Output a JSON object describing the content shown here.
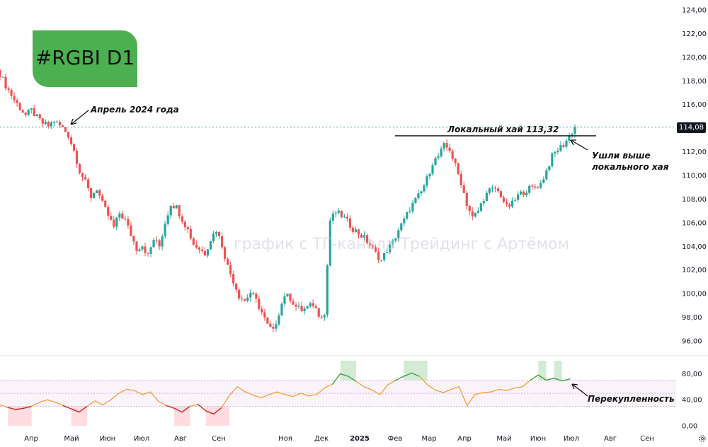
{
  "ticker": "#RGBI D1",
  "watermark": "график с ТГ-канала Трейдинг с Артёмом",
  "last_price_label": "114,08",
  "annotations": {
    "april": "Апрель 2024 года",
    "local_high": "Локальный хай 113,32",
    "above_high_line1": "Ушли выше",
    "above_high_line2": "локального хая",
    "overbought": "Перекупленность"
  },
  "settings_icon": "gear-icon",
  "chart_data": [
    {
      "type": "candlestick",
      "title": "#RGBI D1",
      "x_tick_labels": [
        "Апр",
        "Май",
        "Июн",
        "Июл",
        "Авг",
        "Сен",
        "Ноя",
        "Дек",
        "2025",
        "Фев",
        "Мар",
        "Апр",
        "Май",
        "Июн",
        "Июл",
        "Авг",
        "Сен"
      ],
      "y_tick_labels": [
        "96,00",
        "98,00",
        "100,00",
        "102,00",
        "104,00",
        "106,00",
        "108,00",
        "110,00",
        "112,00",
        "114,00",
        "116,00",
        "118,00",
        "120,00",
        "122,00",
        "124,00"
      ],
      "ylim": [
        95,
        124.5
      ],
      "grid": false,
      "last_price": 114.08,
      "local_high": 113.32,
      "colors": {
        "up": "#26a69a",
        "down": "#ef5350",
        "line": "#131722"
      },
      "close_path": [
        [
          0,
          118.6
        ],
        [
          2,
          117.6
        ],
        [
          5,
          116.4
        ],
        [
          7,
          115.7
        ],
        [
          9,
          115.1
        ],
        [
          11,
          115.5
        ],
        [
          13,
          114.9
        ],
        [
          15,
          114.4
        ],
        [
          17,
          114.2
        ],
        [
          19,
          114.6
        ],
        [
          22,
          114.0
        ],
        [
          24,
          113.4
        ],
        [
          26,
          112.1
        ],
        [
          28,
          110.4
        ],
        [
          30,
          109.4
        ],
        [
          32,
          108.2
        ],
        [
          34,
          108.9
        ],
        [
          36,
          107.6
        ],
        [
          38,
          106.6
        ],
        [
          40,
          105.6
        ],
        [
          42,
          106.8
        ],
        [
          44,
          106.2
        ],
        [
          46,
          105.0
        ],
        [
          48,
          103.8
        ],
        [
          50,
          104.1
        ],
        [
          52,
          103.2
        ],
        [
          54,
          104.6
        ],
        [
          56,
          104.0
        ],
        [
          58,
          106.0
        ],
        [
          60,
          107.6
        ],
        [
          62,
          107.3
        ],
        [
          64,
          106.3
        ],
        [
          66,
          105.4
        ],
        [
          68,
          104.2
        ],
        [
          70,
          103.8
        ],
        [
          72,
          103.4
        ],
        [
          74,
          104.6
        ],
        [
          76,
          105.4
        ],
        [
          78,
          104.1
        ],
        [
          80,
          102.3
        ],
        [
          82,
          101.1
        ],
        [
          84,
          99.8
        ],
        [
          86,
          99.4
        ],
        [
          88,
          100.1
        ],
        [
          90,
          99.4
        ],
        [
          92,
          98.4
        ],
        [
          94,
          97.3
        ],
        [
          96,
          96.8
        ],
        [
          98,
          98.4
        ],
        [
          100,
          99.9
        ],
        [
          102,
          99.6
        ],
        [
          104,
          98.9
        ],
        [
          106,
          98.6
        ],
        [
          108,
          98.8
        ],
        [
          110,
          99.1
        ],
        [
          112,
          98.3
        ],
        [
          114,
          98.2
        ],
        [
          115,
          102.4
        ],
        [
          116,
          106.2
        ],
        [
          118,
          106.9
        ],
        [
          120,
          106.6
        ],
        [
          122,
          106.1
        ],
        [
          124,
          105.5
        ],
        [
          126,
          105.1
        ],
        [
          128,
          104.7
        ],
        [
          130,
          104.1
        ],
        [
          132,
          103.4
        ],
        [
          134,
          102.8
        ],
        [
          136,
          103.7
        ],
        [
          138,
          104.3
        ],
        [
          140,
          105.4
        ],
        [
          142,
          106.2
        ],
        [
          144,
          107.2
        ],
        [
          146,
          107.9
        ],
        [
          148,
          108.6
        ],
        [
          150,
          109.7
        ],
        [
          152,
          111.1
        ],
        [
          154,
          111.6
        ],
        [
          156,
          112.5
        ],
        [
          158,
          112.2
        ],
        [
          160,
          110.8
        ],
        [
          162,
          109.4
        ],
        [
          164,
          107.6
        ],
        [
          166,
          106.4
        ],
        [
          168,
          107.0
        ],
        [
          170,
          108.1
        ],
        [
          172,
          108.7
        ],
        [
          174,
          108.9
        ],
        [
          176,
          108.3
        ],
        [
          178,
          107.3
        ],
        [
          180,
          107.6
        ],
        [
          182,
          108.3
        ],
        [
          184,
          108.6
        ],
        [
          186,
          108.9
        ],
        [
          188,
          109.0
        ],
        [
          190,
          109.3
        ],
        [
          192,
          110.4
        ],
        [
          194,
          111.6
        ],
        [
          196,
          112.2
        ],
        [
          198,
          112.6
        ],
        [
          200,
          113.3
        ],
        [
          202,
          114.08
        ]
      ]
    },
    {
      "type": "line",
      "indicator": "RSI",
      "y_tick_labels": [
        "0,00",
        "40,00",
        "80,00"
      ],
      "ylim": [
        0,
        100
      ],
      "levels": [
        30,
        50,
        70
      ],
      "colors": {
        "neutral": "#f2a541",
        "oversold": "#c62828",
        "overbought": "#43a047"
      },
      "values": [
        [
          0,
          32
        ],
        [
          4,
          28
        ],
        [
          8,
          25
        ],
        [
          12,
          27
        ],
        [
          16,
          30
        ],
        [
          20,
          36
        ],
        [
          24,
          40
        ],
        [
          28,
          36
        ],
        [
          32,
          31
        ],
        [
          36,
          26
        ],
        [
          40,
          21
        ],
        [
          44,
          30
        ],
        [
          48,
          38
        ],
        [
          52,
          32
        ],
        [
          56,
          40
        ],
        [
          60,
          50
        ],
        [
          64,
          56
        ],
        [
          68,
          54
        ],
        [
          72,
          48
        ],
        [
          76,
          52
        ],
        [
          80,
          38
        ],
        [
          84,
          31
        ],
        [
          88,
          27
        ],
        [
          92,
          21
        ],
        [
          96,
          30
        ],
        [
          100,
          33
        ],
        [
          104,
          23
        ],
        [
          108,
          18
        ],
        [
          112,
          28
        ],
        [
          116,
          47
        ],
        [
          120,
          60
        ],
        [
          124,
          52
        ],
        [
          128,
          47
        ],
        [
          132,
          43
        ],
        [
          136,
          48
        ],
        [
          140,
          52
        ],
        [
          144,
          48
        ],
        [
          148,
          45
        ],
        [
          152,
          50
        ],
        [
          156,
          46
        ],
        [
          160,
          48
        ],
        [
          164,
          58
        ],
        [
          168,
          64
        ],
        [
          172,
          80
        ],
        [
          176,
          76
        ],
        [
          180,
          68
        ],
        [
          184,
          60
        ],
        [
          188,
          55
        ],
        [
          192,
          48
        ],
        [
          196,
          63
        ],
        [
          200,
          70
        ],
        [
          204,
          76
        ],
        [
          208,
          81
        ],
        [
          212,
          76
        ],
        [
          216,
          63
        ],
        [
          220,
          55
        ],
        [
          224,
          51
        ],
        [
          228,
          56
        ],
        [
          232,
          60
        ],
        [
          236,
          31
        ],
        [
          240,
          48
        ],
        [
          244,
          51
        ],
        [
          248,
          52
        ],
        [
          252,
          56
        ],
        [
          256,
          54
        ],
        [
          260,
          58
        ],
        [
          264,
          60
        ],
        [
          268,
          70
        ],
        [
          272,
          78
        ],
        [
          276,
          70
        ],
        [
          280,
          73
        ],
        [
          284,
          69
        ],
        [
          288,
          72
        ]
      ]
    }
  ]
}
